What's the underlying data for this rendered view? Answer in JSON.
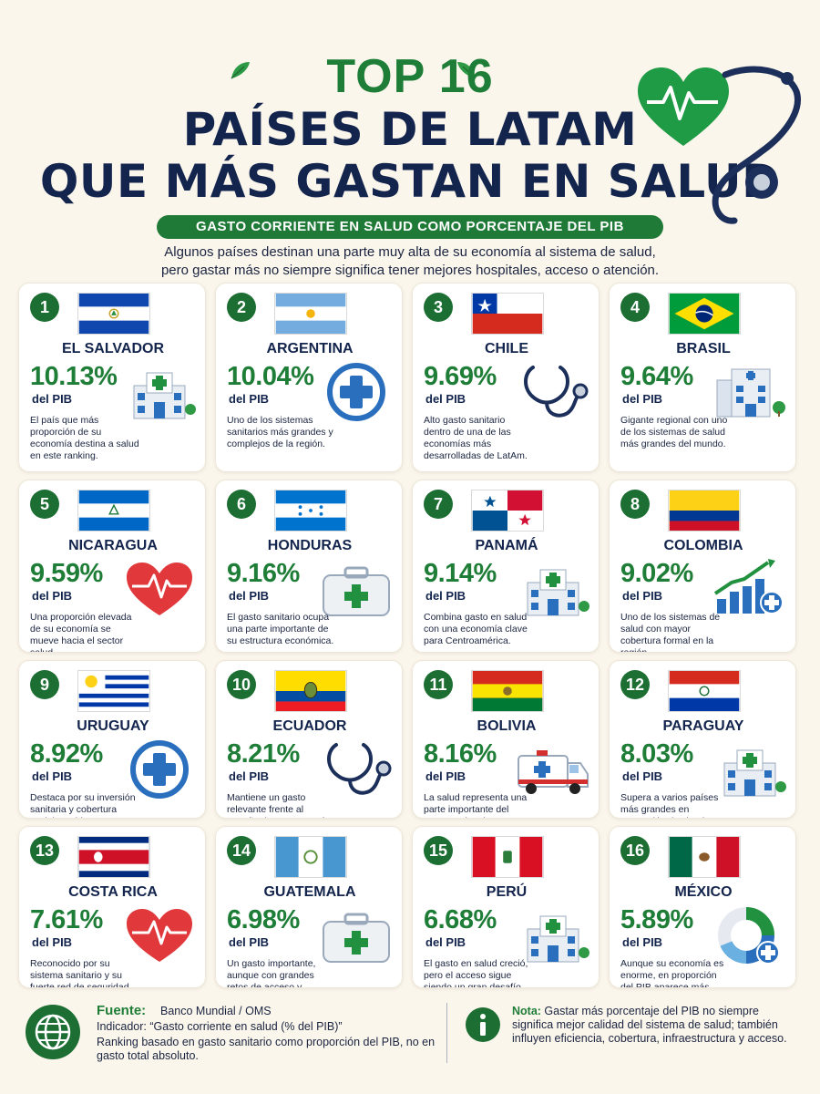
{
  "header": {
    "top_label": "TOP 16",
    "title_line1": "PAÍSES DE LATAM",
    "title_line2": "QUE MÁS GASTAN EN SALUD",
    "subtitle": "GASTO CORRIENTE EN SALUD COMO PORCENTAJE DEL PIB",
    "intro_line1": "Algunos países destinan una parte muy alta de su economía al sistema de salud,",
    "intro_line2": "pero gastar más no siempre significa tener mejores hospitales, acceso o atención."
  },
  "unit_label": "del PIB",
  "colors": {
    "green": "#1e7d36",
    "navy": "#13244d",
    "blue": "#1a6fc1"
  },
  "countries": [
    {
      "rank": "1",
      "name": "EL SALVADOR",
      "pct": "10.13%",
      "desc": "El país que más proporción de su economía destina a salud en este ranking.",
      "flag": "el-salvador",
      "icon": "hospital-icon"
    },
    {
      "rank": "2",
      "name": "ARGENTINA",
      "pct": "10.04%",
      "desc": "Uno de los sistemas sanitarios más grandes y complejos de la región.",
      "flag": "argentina",
      "icon": "medical-cross-icon"
    },
    {
      "rank": "3",
      "name": "CHILE",
      "pct": "9.69%",
      "desc": "Alto gasto sanitario dentro de una de las economías más desarrolladas de LatAm.",
      "flag": "chile",
      "icon": "stethoscope-icon"
    },
    {
      "rank": "4",
      "name": "BRASIL",
      "pct": "9.64%",
      "desc": "Gigante regional con uno de los sistemas de salud más grandes del mundo.",
      "flag": "brasil",
      "icon": "hospital-building-icon"
    },
    {
      "rank": "5",
      "name": "NICARAGUA",
      "pct": "9.59%",
      "desc": "Una proporción elevada de su economía se mueve hacia el sector salud.",
      "flag": "nicaragua",
      "icon": "heart-pulse-icon"
    },
    {
      "rank": "6",
      "name": "HONDURAS",
      "pct": "9.16%",
      "desc": "El gasto sanitario ocupa una parte importante de su estructura económica.",
      "flag": "honduras",
      "icon": "first-aid-kit-icon"
    },
    {
      "rank": "7",
      "name": "PANAMÁ",
      "pct": "9.14%",
      "desc": "Combina gasto en salud con una economía clave para Centroamérica.",
      "flag": "panama",
      "icon": "hospital-icon"
    },
    {
      "rank": "8",
      "name": "COLOMBIA",
      "pct": "9.02%",
      "desc": "Uno de los sistemas de salud con mayor cobertura formal en la región.",
      "flag": "colombia",
      "icon": "growth-chart-icon"
    },
    {
      "rank": "9",
      "name": "URUGUAY",
      "pct": "8.92%",
      "desc": "Destaca por su inversión sanitaria y cobertura social estable.",
      "flag": "uruguay",
      "icon": "medical-cross-icon"
    },
    {
      "rank": "10",
      "name": "ECUADOR",
      "pct": "8.21%",
      "desc": "Mantiene un gasto relevante frente al tamaño de su economía.",
      "flag": "ecuador",
      "icon": "stethoscope-icon"
    },
    {
      "rank": "11",
      "name": "BOLIVIA",
      "pct": "8.16%",
      "desc": "La salud representa una parte importante del gasto nacional.",
      "flag": "bolivia",
      "icon": "ambulance-icon"
    },
    {
      "rank": "12",
      "name": "PARAGUAY",
      "pct": "8.03%",
      "desc": "Supera a varios países más grandes en proporción destinada a salud.",
      "flag": "paraguay",
      "icon": "hospital-icon"
    },
    {
      "rank": "13",
      "name": "COSTA RICA",
      "pct": "7.61%",
      "desc": "Reconocido por su sistema sanitario y su fuerte red de seguridad social.",
      "flag": "costa-rica",
      "icon": "heart-pulse-icon"
    },
    {
      "rank": "14",
      "name": "GUATEMALA",
      "pct": "6.98%",
      "desc": "Un gasto importante, aunque con grandes retos de acceso y cobertura.",
      "flag": "guatemala",
      "icon": "first-aid-kit-icon"
    },
    {
      "rank": "15",
      "name": "PERÚ",
      "pct": "6.68%",
      "desc": "El gasto en salud creció, pero el acceso sigue siendo un gran desafío.",
      "flag": "peru",
      "icon": "hospital-icon"
    },
    {
      "rank": "16",
      "name": "MÉXICO",
      "pct": "5.89%",
      "desc": "Aunque su economía es enorme, en proporción del PIB aparece más abajo.",
      "flag": "mexico",
      "icon": "donut-chart-icon"
    }
  ],
  "footer": {
    "source_label": "Fuente:",
    "source_value": "Banco Mundial / OMS",
    "indicator": "Indicador: “Gasto corriente en salud (% del PIB)”",
    "ranking_note": "Ranking basado en gasto sanitario como proporción del PIB, no en gasto total absoluto.",
    "note_label": "Nota:",
    "note_text": " Gastar más porcentaje del PIB no siempre significa mejor calidad del sistema de salud; también influyen eficiencia, cobertura, infraestructura y acceso."
  }
}
